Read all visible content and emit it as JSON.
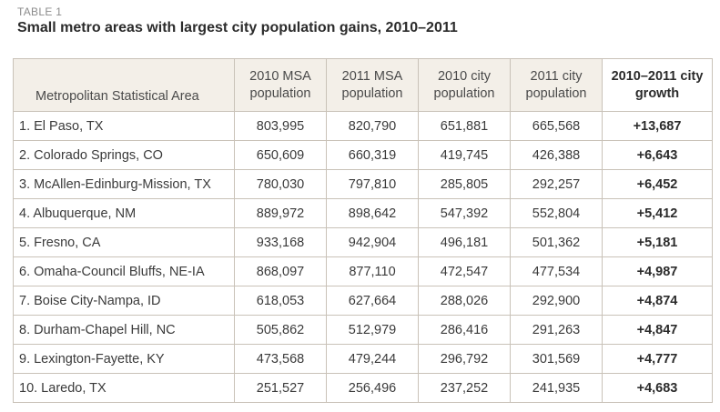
{
  "table_label": "TABLE 1",
  "title": "Small metro areas with largest city population gains, 2010–2011",
  "chart_data": {
    "type": "table",
    "title": "Small metro areas with largest city population gains, 2010–2011",
    "columns": [
      "Metropolitan Statistical Area",
      "2010 MSA population",
      "2011 MSA population",
      "2010 city population",
      "2011 city population",
      "2010–2011 city growth"
    ],
    "rows": [
      [
        "1. El Paso, TX",
        "803,995",
        "820,790",
        "651,881",
        "665,568",
        "+13,687"
      ],
      [
        "2. Colorado Springs, CO",
        "650,609",
        "660,319",
        "419,745",
        "426,388",
        "+6,643"
      ],
      [
        "3. McAllen-Edinburg-Mission, TX",
        "780,030",
        "797,810",
        "285,805",
        "292,257",
        "+6,452"
      ],
      [
        "4. Albuquerque, NM",
        "889,972",
        "898,642",
        "547,392",
        "552,804",
        "+5,412"
      ],
      [
        "5. Fresno, CA",
        "933,168",
        "942,904",
        "496,181",
        "501,362",
        "+5,181"
      ],
      [
        "6. Omaha-Council Bluffs, NE-IA",
        "868,097",
        "877,110",
        "472,547",
        "477,534",
        "+4,987"
      ],
      [
        "7. Boise City-Nampa, ID",
        "618,053",
        "627,664",
        "288,026",
        "292,900",
        "+4,874"
      ],
      [
        "8. Durham-Chapel Hill, NC",
        "505,862",
        "512,979",
        "286,416",
        "291,263",
        "+4,847"
      ],
      [
        "9. Lexington-Fayette, KY",
        "473,568",
        "479,244",
        "296,792",
        "301,569",
        "+4,777"
      ],
      [
        "10. Laredo, TX",
        "251,527",
        "256,496",
        "237,252",
        "241,935",
        "+4,683"
      ]
    ]
  },
  "colors": {
    "header_background": "#f3efe8",
    "border": "#c9c2b8",
    "label_gray": "#8c8c8c",
    "text": "#2e2e2e"
  }
}
